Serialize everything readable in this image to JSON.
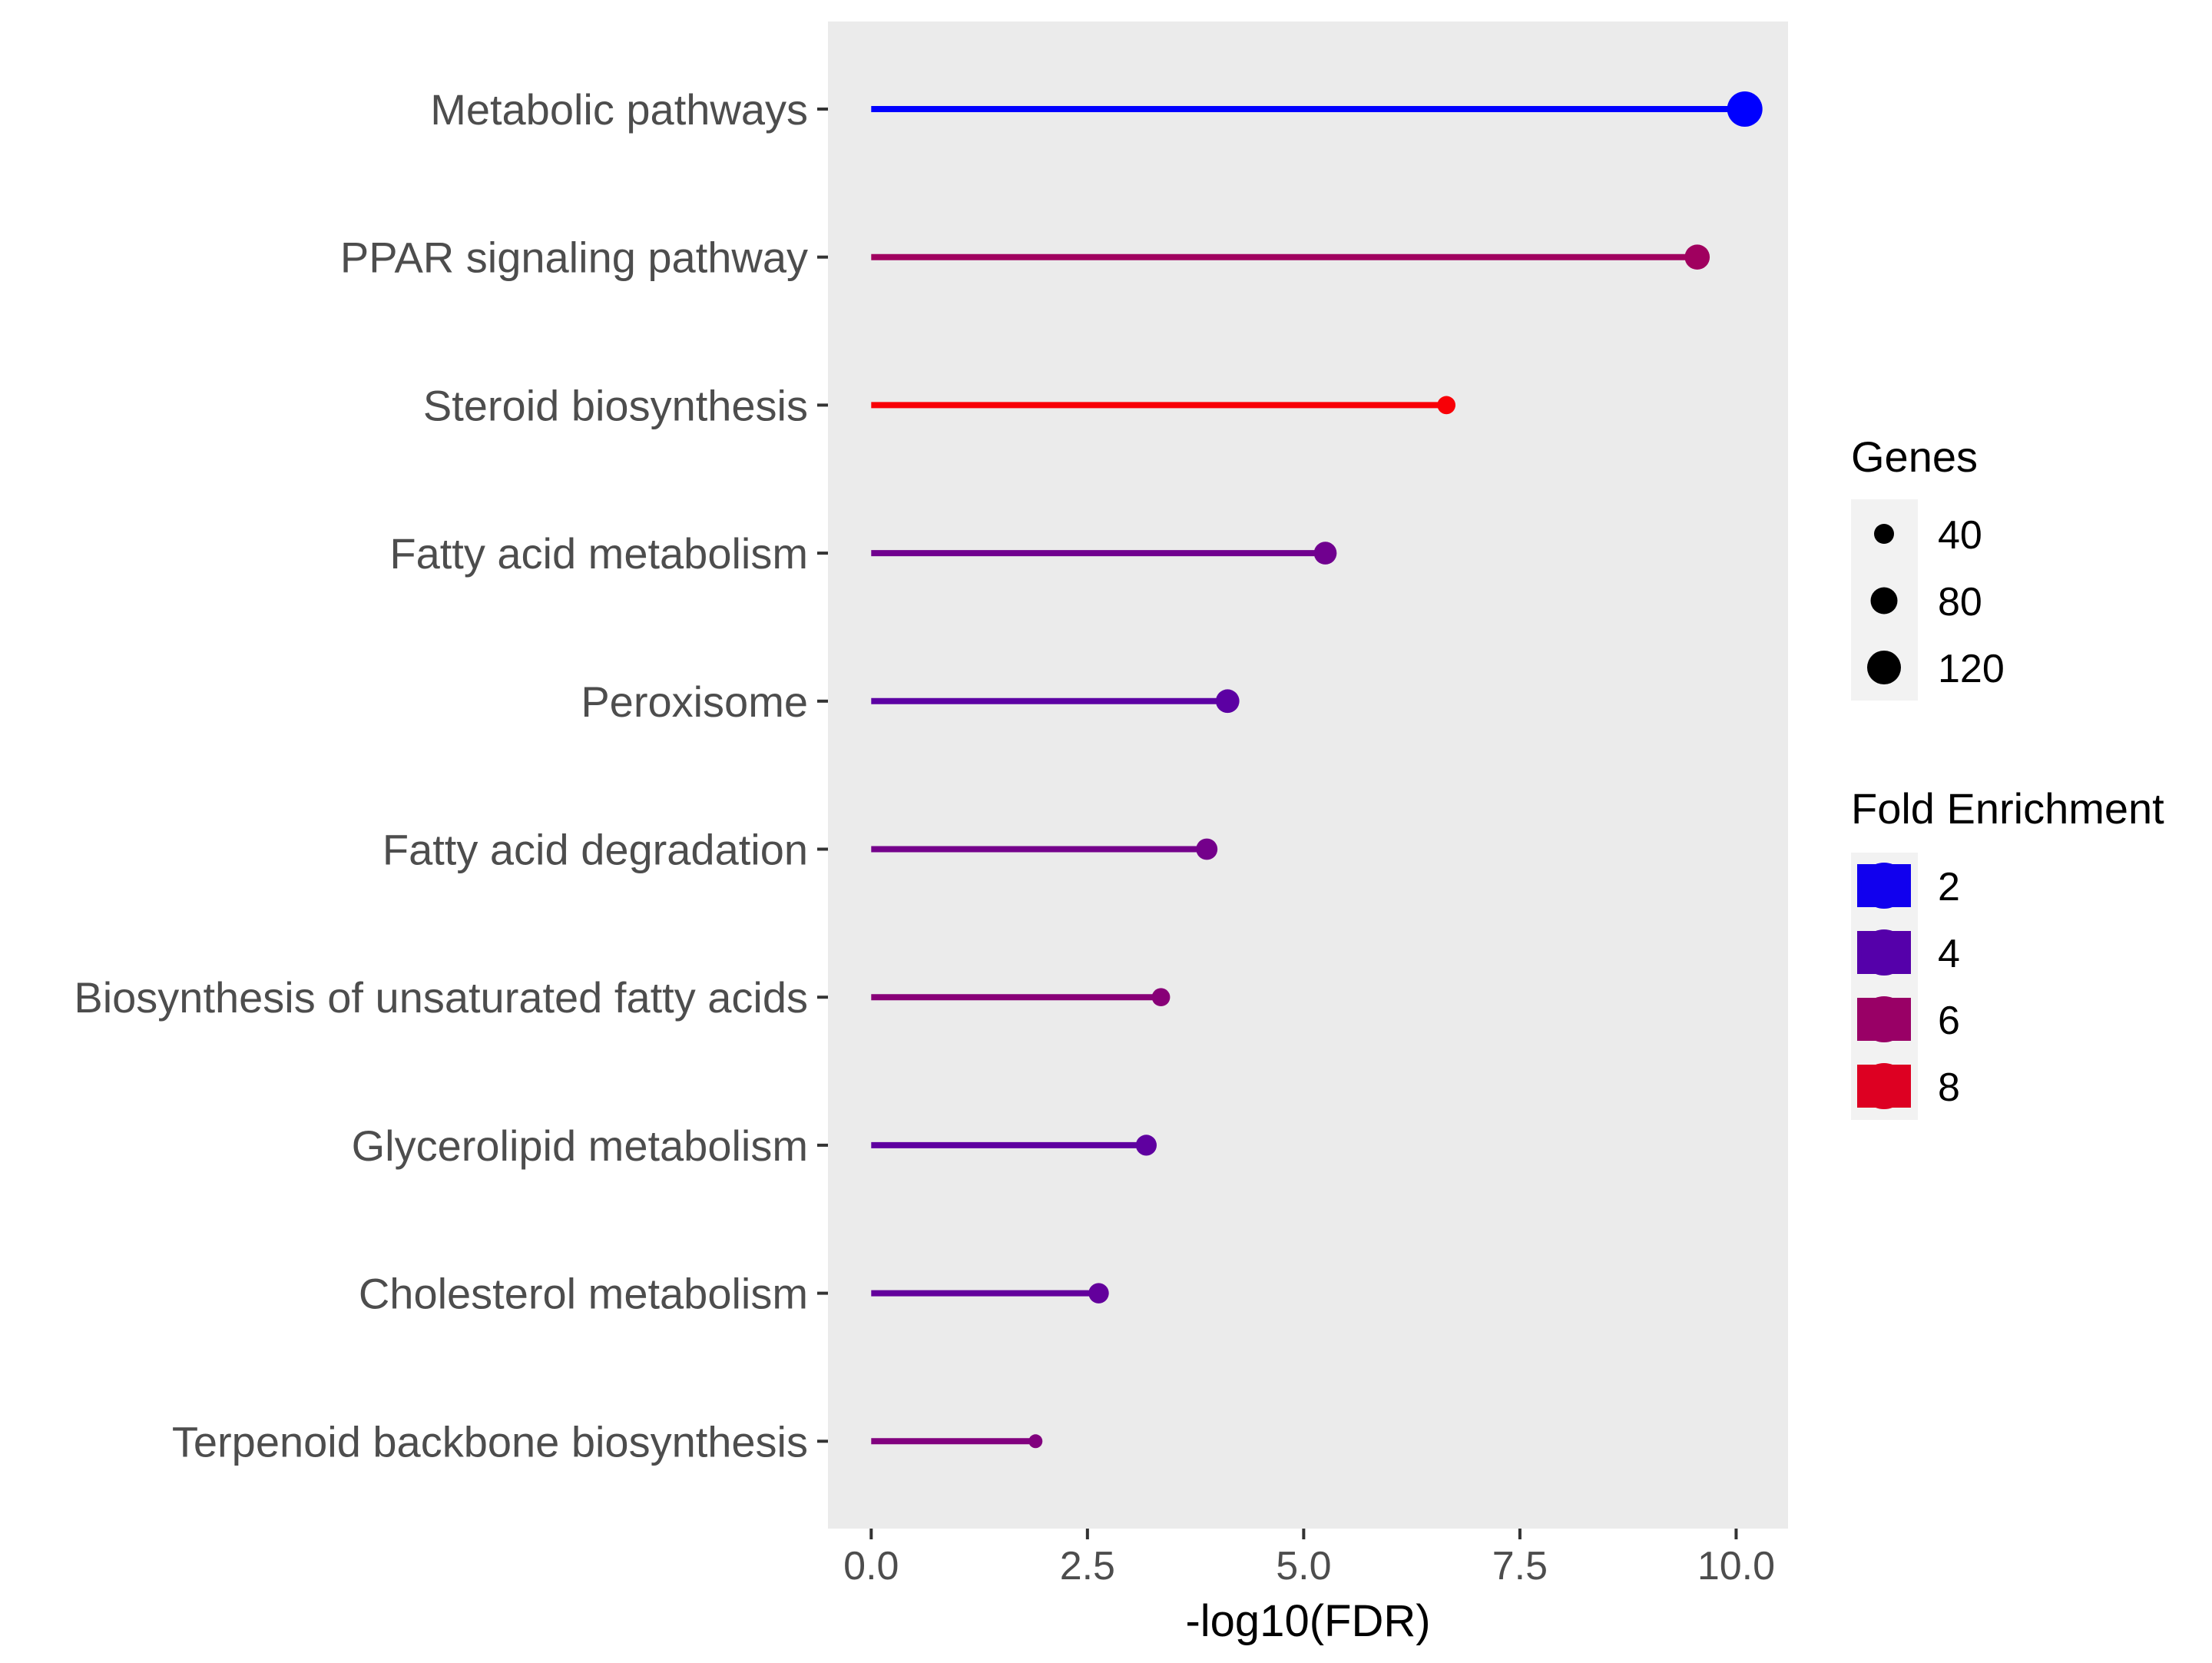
{
  "chart_data": {
    "type": "lollipop",
    "title": "",
    "xlabel": "-log10(FDR)",
    "ylabel": "",
    "xlim": [
      -0.5,
      10.6
    ],
    "x_ticks": [
      {
        "value": 0,
        "label": "0.0"
      },
      {
        "value": 2.5,
        "label": "2.5"
      },
      {
        "value": 5,
        "label": "5.0"
      },
      {
        "value": 7.5,
        "label": "7.5"
      },
      {
        "value": 10,
        "label": "10.0"
      }
    ],
    "grid": false,
    "panel_background": "#ebebeb",
    "categories": [
      "Metabolic pathways",
      "PPAR signaling pathway",
      "Steroid biosynthesis",
      "Fatty acid metabolism",
      "Peroxisome",
      "Fatty acid degradation",
      "Biosynthesis of unsaturated fatty acids",
      "Glycerolipid metabolism",
      "Cholesterol metabolism",
      "Terpenoid backbone biosynthesis"
    ],
    "points": [
      {
        "name": "Metabolic pathways",
        "x": 10.1,
        "genes": 130,
        "fold_enrichment": 1.5
      },
      {
        "name": "PPAR signaling pathway",
        "x": 9.55,
        "genes": 42,
        "fold_enrichment": 6.2
      },
      {
        "name": "Steroid biosynthesis",
        "x": 6.65,
        "genes": 14,
        "fold_enrichment": 8.8
      },
      {
        "name": "Fatty acid metabolism",
        "x": 5.25,
        "genes": 30,
        "fold_enrichment": 4.8
      },
      {
        "name": "Peroxisome",
        "x": 4.12,
        "genes": 34,
        "fold_enrichment": 4.2
      },
      {
        "name": "Fatty acid degradation",
        "x": 3.88,
        "genes": 24,
        "fold_enrichment": 4.9
      },
      {
        "name": "Biosynthesis of unsaturated fatty acids",
        "x": 3.35,
        "genes": 14,
        "fold_enrichment": 5.5
      },
      {
        "name": "Glycerolipid metabolism",
        "x": 3.18,
        "genes": 22,
        "fold_enrichment": 4.3
      },
      {
        "name": "Cholesterol metabolism",
        "x": 2.63,
        "genes": 20,
        "fold_enrichment": 4.4
      },
      {
        "name": "Terpenoid backbone biosynthesis",
        "x": 1.9,
        "genes": 9,
        "fold_enrichment": 5.3
      }
    ],
    "size_legend": {
      "title": "Genes",
      "entries": [
        {
          "label": "40",
          "value": 40
        },
        {
          "label": "80",
          "value": 80
        },
        {
          "label": "120",
          "value": 120
        }
      ]
    },
    "color_legend": {
      "title": "Fold Enrichment",
      "low_color": "#0000ff",
      "high_color": "#ff0000",
      "range": [
        1.5,
        9
      ],
      "entries": [
        {
          "label": "2",
          "value": 2
        },
        {
          "label": "4",
          "value": 4
        },
        {
          "label": "6",
          "value": 6
        },
        {
          "label": "8",
          "value": 8
        }
      ]
    },
    "legend_position": "right"
  }
}
